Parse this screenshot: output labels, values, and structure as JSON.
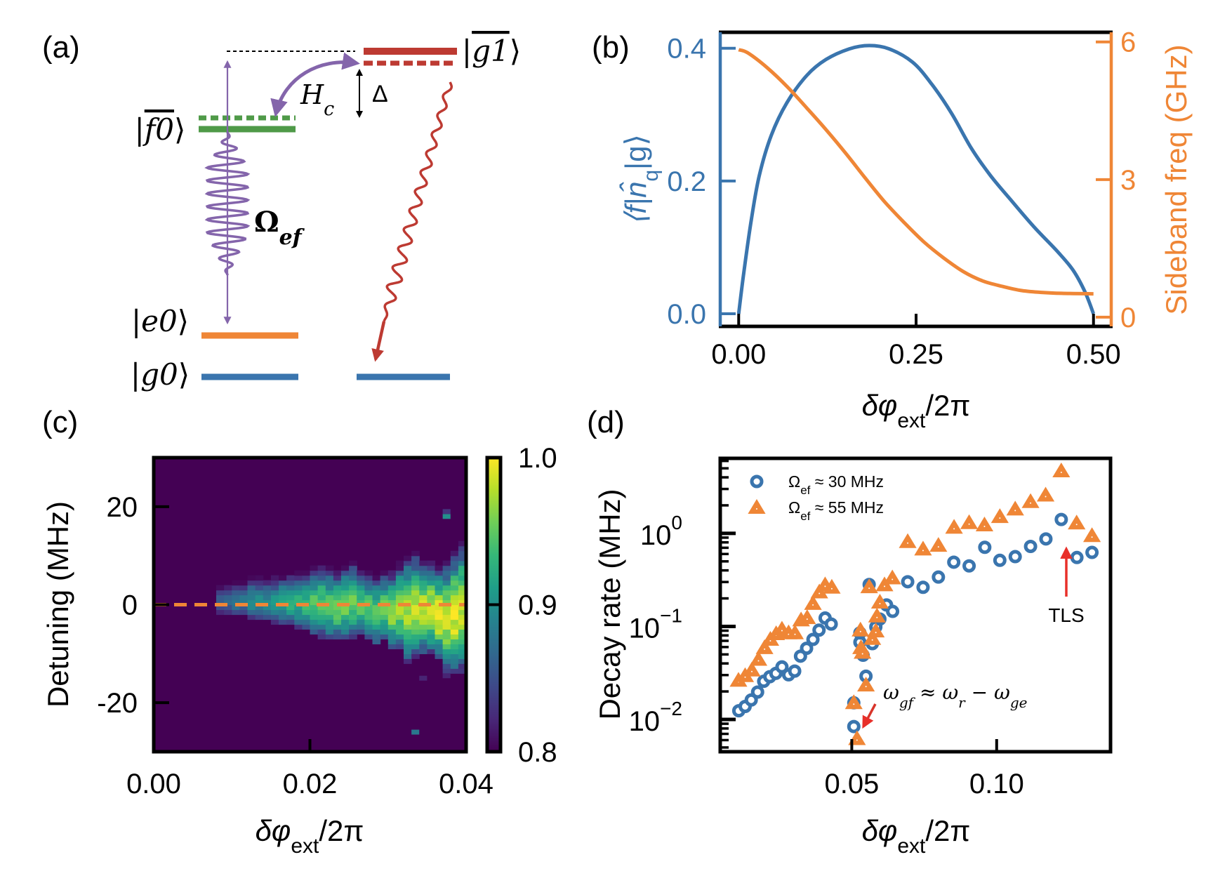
{
  "panel_labels": [
    "(a)",
    "(b)",
    "(c)",
    "(d)"
  ],
  "colors": {
    "blue": "#3a75ae",
    "orange": "#ef8636",
    "red": "#bd3a32",
    "green": "#4f9a48",
    "purple": "#8465ab",
    "black": "#000000"
  },
  "diagram": {
    "states": {
      "g1": {
        "ket_open": "|",
        "sym": "g1",
        "ket_close": "⟩",
        "overline": true
      },
      "f0": {
        "ket_open": "|",
        "sym": "f0",
        "ket_close": "⟩",
        "overline": true
      },
      "e0": {
        "ket_open": "|",
        "sym": "e0",
        "ket_close": "⟩"
      },
      "g0": {
        "ket_open": "|",
        "sym": "g0",
        "ket_close": "⟩"
      }
    },
    "coupling_label": {
      "main": "H",
      "sub": "c"
    },
    "detuning_label": "Δ",
    "drive_label": {
      "main": "Ω",
      "sub": "ef"
    }
  },
  "chart_data": [
    {
      "panel": "b",
      "type": "line",
      "xlabel": {
        "pre": "δφ",
        "sub": "ext",
        "post": "/2π"
      },
      "ylabel_left": {
        "pre": "⟨f|n̂",
        "sub": "q",
        "post": "|g⟩"
      },
      "ylabel_right": "Sideband freq (GHz)",
      "xlim": [
        -0.026,
        0.525
      ],
      "ylim_left": [
        -0.019,
        0.424
      ],
      "ylim_right": [
        -0.2,
        6.21
      ],
      "xticks": [
        "0.00",
        "0.25",
        "0.50"
      ],
      "xtick_values": [
        0,
        0.25,
        0.5
      ],
      "yticks_left": [
        "0.0",
        "0.2",
        "0.4"
      ],
      "ytick_values_left": [
        0,
        0.2,
        0.4
      ],
      "yticks_right": [
        "0",
        "3",
        "6"
      ],
      "ytick_values_right": [
        0,
        3,
        6
      ],
      "series": [
        {
          "axis": "left",
          "color": "#3a75ae",
          "x": [
            0,
            0.0072,
            0.018,
            0.029,
            0.046,
            0.068,
            0.096,
            0.123,
            0.156,
            0.184,
            0.212,
            0.245,
            0.272,
            0.3,
            0.328,
            0.355,
            0.383,
            0.416,
            0.449,
            0.471,
            0.488,
            0.5
          ],
          "y": [
            0,
            0.062,
            0.143,
            0.208,
            0.269,
            0.318,
            0.359,
            0.383,
            0.399,
            0.404,
            0.399,
            0.379,
            0.346,
            0.302,
            0.249,
            0.208,
            0.172,
            0.131,
            0.094,
            0.066,
            0.033,
            0
          ]
        },
        {
          "axis": "right",
          "color": "#ef8636",
          "x": [
            0,
            0.013,
            0.04,
            0.068,
            0.096,
            0.123,
            0.151,
            0.178,
            0.206,
            0.234,
            0.261,
            0.289,
            0.317,
            0.344,
            0.372,
            0.399,
            0.427,
            0.455,
            0.5
          ],
          "y": [
            5.83,
            5.76,
            5.44,
            5.03,
            4.56,
            4.09,
            3.57,
            3.04,
            2.51,
            2.05,
            1.64,
            1.29,
            0.99,
            0.79,
            0.67,
            0.58,
            0.54,
            0.52,
            0.51
          ]
        }
      ]
    },
    {
      "panel": "c",
      "type": "heatmap",
      "xlabel": {
        "pre": "δφ",
        "sub": "ext",
        "post": "/2π"
      },
      "ylabel": "Detuning (MHz)",
      "xlim": [
        0,
        0.04
      ],
      "ylim": [
        -30,
        30
      ],
      "xticks": [
        "0.00",
        "0.02",
        "0.04"
      ],
      "xtick_values": [
        0,
        0.02,
        0.04
      ],
      "yticks": [
        "20",
        "0",
        "-20"
      ],
      "ytick_values": [
        20,
        0,
        -20
      ],
      "colormap": "viridis",
      "clim": [
        0.8,
        1.0
      ],
      "colorbar_ticks": [
        "1.0",
        "0.9",
        "0.8"
      ],
      "colorbar_tick_values": [
        1.0,
        0.9,
        0.8
      ],
      "x_bin_width": 0.001,
      "y_bin_width_mhz": 1,
      "columns": {
        "x": [
          0.008,
          0.009,
          0.01,
          0.011,
          0.012,
          0.013,
          0.014,
          0.015,
          0.016,
          0.017,
          0.018,
          0.019,
          0.02,
          0.021,
          0.022,
          0.023,
          0.024,
          0.025,
          0.026,
          0.027,
          0.028,
          0.029,
          0.03,
          0.031,
          0.032,
          0.033,
          0.034,
          0.035,
          0.036,
          0.037,
          0.038,
          0.039
        ],
        "top": [
          3.9,
          3.9,
          4.5,
          4.5,
          5.3,
          5.5,
          5.0,
          5.5,
          6,
          6,
          6.5,
          6.5,
          7.5,
          8,
          7.5,
          7,
          8,
          8.5,
          7,
          6.5,
          6,
          6.5,
          7,
          8.5,
          10,
          10.5,
          9,
          9,
          8,
          9,
          11,
          13
        ],
        "bottom": [
          -1.2,
          -1.5,
          -1.8,
          -2,
          -2.5,
          -2.8,
          -3,
          -3.5,
          -3.5,
          -4,
          -4.5,
          -5,
          -6,
          -6.5,
          -7,
          -7,
          -7,
          -6.5,
          -6,
          -7,
          -8,
          -7,
          -9,
          -9,
          -12,
          -11,
          -10,
          -10,
          -11,
          -14,
          -14,
          -14
        ],
        "peak": [
          0.86,
          0.87,
          0.88,
          0.88,
          0.9,
          0.9,
          0.9,
          0.91,
          0.92,
          0.93,
          0.93,
          0.94,
          0.95,
          0.95,
          0.95,
          0.96,
          0.96,
          0.96,
          0.95,
          0.95,
          0.95,
          0.96,
          0.97,
          0.98,
          0.98,
          0.99,
          0.99,
          0.99,
          1.0,
          0.99,
          1.0,
          0.99
        ]
      },
      "isolated_pixels": [
        {
          "x": 0.037,
          "y": 18,
          "value": 0.9
        },
        {
          "x": 0.037,
          "y": 19,
          "value": 0.83
        },
        {
          "x": 0.033,
          "y": -26,
          "value": 0.88
        },
        {
          "x": 0.034,
          "y": -15,
          "value": 0.82
        },
        {
          "x": 0.037,
          "y": -14.5,
          "value": 0.82
        }
      ],
      "reference_line": {
        "y": 0,
        "style": "dashed",
        "color": "#ef8636"
      }
    },
    {
      "panel": "d",
      "type": "scatter",
      "xlabel": {
        "pre": "δφ",
        "sub": "ext",
        "post": "/2π"
      },
      "ylabel": "Decay rate (MHz)",
      "yscale": "log",
      "xlim": [
        0.0046,
        0.1393
      ],
      "ylim": [
        0.0045,
        6.4
      ],
      "xticks": [
        "0.05",
        "0.10"
      ],
      "xtick_values": [
        0.05,
        0.1
      ],
      "yticks": [
        {
          "base": "10",
          "exp": "0",
          "value": 1
        },
        {
          "base": "10",
          "exp": "−1",
          "value": 0.1
        },
        {
          "base": "10",
          "exp": "−2",
          "value": 0.01
        }
      ],
      "legend_position": "top-left",
      "series": [
        {
          "name": {
            "pre": "Ω",
            "sub": "ef",
            "post": " ≈ 30 MHz"
          },
          "marker": "circle",
          "color": "#3a75ae",
          "x": [
            0.011,
            0.0132,
            0.0153,
            0.0175,
            0.0196,
            0.0217,
            0.0238,
            0.0259,
            0.0282,
            0.0303,
            0.0323,
            0.0344,
            0.0366,
            0.0387,
            0.0408,
            0.0429,
            0.0507,
            0.0507,
            0.0549,
            0.0539,
            0.0528,
            0.0528,
            0.056,
            0.0571,
            0.0583,
            0.0597,
            0.062,
            0.0641,
            0.0693,
            0.0746,
            0.0799,
            0.0852,
            0.0905,
            0.0959,
            0.1011,
            0.1064,
            0.1117,
            0.117,
            0.1223,
            0.1277,
            0.1329
          ],
          "y": [
            0.0124,
            0.0138,
            0.0162,
            0.0197,
            0.0257,
            0.0288,
            0.0313,
            0.0367,
            0.0302,
            0.0331,
            0.0479,
            0.0582,
            0.0724,
            0.0912,
            0.123,
            0.106,
            0.0084,
            0.0151,
            0.0292,
            0.049,
            0.0676,
            0.0851,
            0.282,
            0.0653,
            0.0989,
            0.12,
            0.17,
            0.145,
            0.302,
            0.263,
            0.339,
            0.49,
            0.447,
            0.708,
            0.513,
            0.562,
            0.724,
            0.871,
            1.41,
            0.55,
            0.624
          ]
        },
        {
          "name": {
            "pre": "Ω",
            "sub": "ef",
            "post": " ≈ 55 MHz"
          },
          "marker": "triangle",
          "color": "#ef8636",
          "x": [
            0.0109,
            0.0132,
            0.0155,
            0.0178,
            0.0199,
            0.0219,
            0.0239,
            0.0259,
            0.0282,
            0.0304,
            0.0325,
            0.0346,
            0.0366,
            0.0388,
            0.0408,
            0.0431,
            0.0518,
            0.0507,
            0.0549,
            0.053,
            0.0532,
            0.0537,
            0.056,
            0.0571,
            0.0583,
            0.0587,
            0.0597,
            0.0613,
            0.064,
            0.0693,
            0.0746,
            0.0799,
            0.0853,
            0.0905,
            0.0958,
            0.1011,
            0.1064,
            0.1117,
            0.1169,
            0.1223,
            0.1276,
            0.1329
          ],
          "y": [
            0.0263,
            0.0295,
            0.0339,
            0.0442,
            0.0589,
            0.0724,
            0.0832,
            0.0933,
            0.0851,
            0.0851,
            0.117,
            0.124,
            0.176,
            0.234,
            0.279,
            0.263,
            0.0062,
            0.0151,
            0.0234,
            0.0912,
            0.0589,
            0.0525,
            0.266,
            0.0741,
            0.0891,
            0.129,
            0.182,
            0.279,
            0.331,
            0.813,
            0.676,
            0.741,
            1.16,
            1.3,
            1.23,
            1.51,
            1.82,
            2.19,
            2.57,
            4.68,
            1.29,
            0.944
          ]
        }
      ],
      "annotations": [
        {
          "text": {
            "w1": "ω",
            "s1": "gf",
            "mid": " ≈ ",
            "w2": "ω",
            "s2": "r",
            "dash": " − ",
            "w3": "ω",
            "s3": "ge"
          },
          "points_to": {
            "x": 0.0507,
            "y": 0.0084
          },
          "arrow_color": "#d8342a"
        },
        {
          "text": "TLS",
          "points_to": {
            "x": 0.1223,
            "y": 1.41
          },
          "arrow_color": "#e8302a"
        }
      ]
    }
  ]
}
